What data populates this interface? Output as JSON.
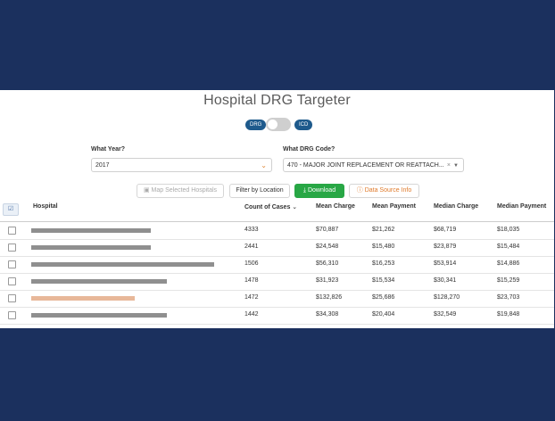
{
  "app": {
    "title": "Hospital DRG Targeter"
  },
  "toggle": {
    "left_label": "DRG",
    "right_label": "ICD"
  },
  "filters": {
    "year_label": "What Year?",
    "year_value": "2017",
    "drg_label": "What DRG Code?",
    "drg_value": "470 - MAJOR JOINT REPLACEMENT OR REATTACH..."
  },
  "actions": {
    "map_label": "Map Selected Hospitals",
    "filter_label": "Filter by Location",
    "download_label": "Download",
    "source_label": "Data Source Info"
  },
  "table": {
    "columns": [
      "Hospital",
      "Count of Cases",
      "Mean Charge",
      "Mean Payment",
      "Median Charge",
      "Median Payment"
    ],
    "rows": [
      {
        "hospital": "",
        "count": "4333",
        "mean_charge": "$70,887",
        "mean_payment": "$21,262",
        "median_charge": "$68,719",
        "median_payment": "$18,035"
      },
      {
        "hospital": "",
        "count": "2441",
        "mean_charge": "$24,548",
        "mean_payment": "$15,480",
        "median_charge": "$23,879",
        "median_payment": "$15,484"
      },
      {
        "hospital": "",
        "count": "1506",
        "mean_charge": "$56,310",
        "mean_payment": "$16,253",
        "median_charge": "$53,914",
        "median_payment": "$14,886"
      },
      {
        "hospital": "",
        "count": "1478",
        "mean_charge": "$31,923",
        "mean_payment": "$15,534",
        "median_charge": "$30,341",
        "median_payment": "$15,259"
      },
      {
        "hospital": "",
        "count": "1472",
        "mean_charge": "$132,826",
        "mean_payment": "$25,686",
        "median_charge": "$128,270",
        "median_payment": "$23,703"
      },
      {
        "hospital": "",
        "count": "1442",
        "mean_charge": "$34,308",
        "mean_payment": "$20,404",
        "median_charge": "$32,549",
        "median_payment": "$19,848"
      }
    ]
  },
  "colors": {
    "background": "#1b305e",
    "pill": "#1e5a8c",
    "download": "#28a745",
    "accent": "#e07b2c"
  },
  "icons": {
    "map": "map-icon",
    "download": "download-icon",
    "info": "info-circle-icon",
    "sort": "sort-desc-icon",
    "dropdown": "chevron-down-icon"
  }
}
